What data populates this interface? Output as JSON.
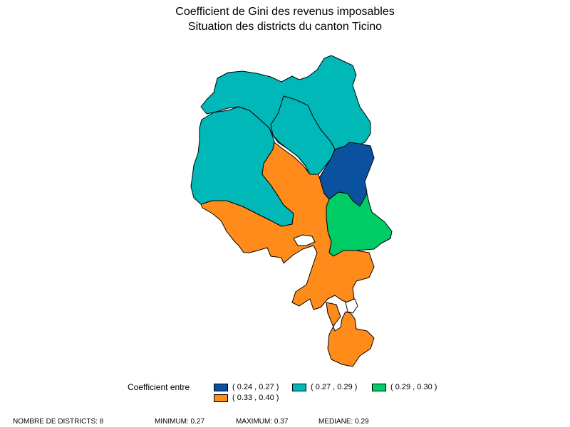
{
  "title": {
    "line1": "Coefficient de Gini des revenus imposables",
    "line2": "Situation des districts du canton Ticino"
  },
  "colors": {
    "class1": "#0a52a0",
    "class2": "#00b8b8",
    "class3": "#00cc66",
    "class4": "#ff8c1a"
  },
  "legend": {
    "label": "Coefficient entre",
    "items": [
      {
        "label": "( 0.24 , 0.27 )",
        "color": "#0a52a0"
      },
      {
        "label": "( 0.27 , 0.29 )",
        "color": "#00b8b8"
      },
      {
        "label": "( 0.29 , 0.30 )",
        "color": "#00cc66"
      },
      {
        "label": "( 0.33 , 0.40 )",
        "color": "#ff8c1a"
      }
    ]
  },
  "stats": {
    "count": "NOMBRE DE DISTRICTS: 8",
    "minimum": "MINIMUM: 0.27",
    "maximum": "MAXIMUM: 0.37",
    "median": "MEDIANE: 0.29"
  }
}
